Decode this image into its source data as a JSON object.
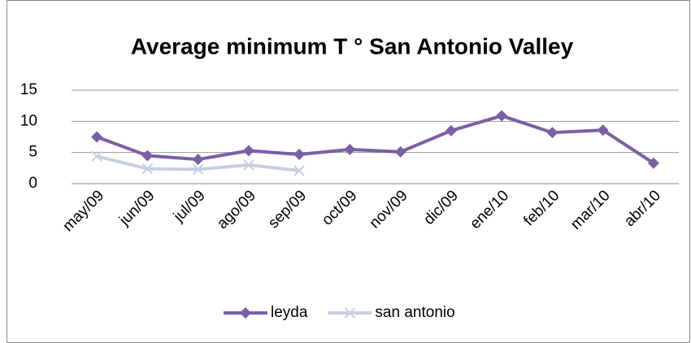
{
  "chart_data": {
    "type": "line",
    "title": "Average minimum T ° San Antonio Valley",
    "categories": [
      "may/09",
      "jun/09",
      "jul/09",
      "ago/09",
      "sep/09",
      "oct/09",
      "nov/09",
      "dic/09",
      "ene/10",
      "feb/10",
      "mar/10",
      "abr/10"
    ],
    "series": [
      {
        "name": "leyda",
        "color": "#7b5fa3",
        "marker": "diamond",
        "values": [
          7.5,
          4.5,
          3.9,
          5.3,
          4.7,
          5.5,
          5.1,
          8.5,
          10.9,
          8.2,
          8.6,
          3.3
        ]
      },
      {
        "name": "san antonio",
        "color": "#c7cfe2",
        "marker": "x",
        "values": [
          4.4,
          2.4,
          2.3,
          3.0,
          2.1,
          null,
          null,
          null,
          null,
          null,
          null,
          null
        ]
      }
    ],
    "ylim": [
      0,
      15
    ],
    "yticks": [
      0,
      5,
      10,
      15
    ],
    "grid": true,
    "legend": "bottom"
  }
}
